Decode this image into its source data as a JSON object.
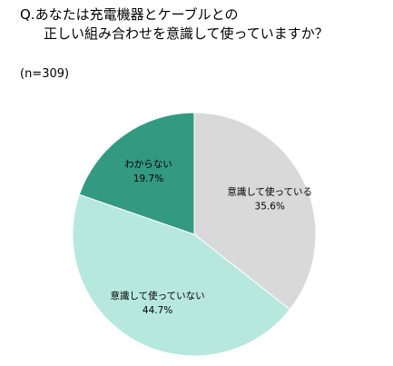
{
  "question": {
    "line1": "Q.あなたは充電機器とケーブルとの",
    "line2": "正しい組み合わせを意識して使っていますか？"
  },
  "sample_size": "(n=309)",
  "chart_data": {
    "type": "pie",
    "title": "Q.あなたは充電機器とケーブルとの正しい組み合わせを意識して使っていますか？",
    "n": 309,
    "slices": [
      {
        "label": "意識して使っている",
        "value": 35.6,
        "value_label": "35.6%",
        "color": "#d9d9d9"
      },
      {
        "label": "意識して使っていない",
        "value": 44.7,
        "value_label": "44.7%",
        "color": "#b7e8de"
      },
      {
        "label": "わからない",
        "value": 19.7,
        "value_label": "19.7%",
        "color": "#339980"
      }
    ]
  }
}
